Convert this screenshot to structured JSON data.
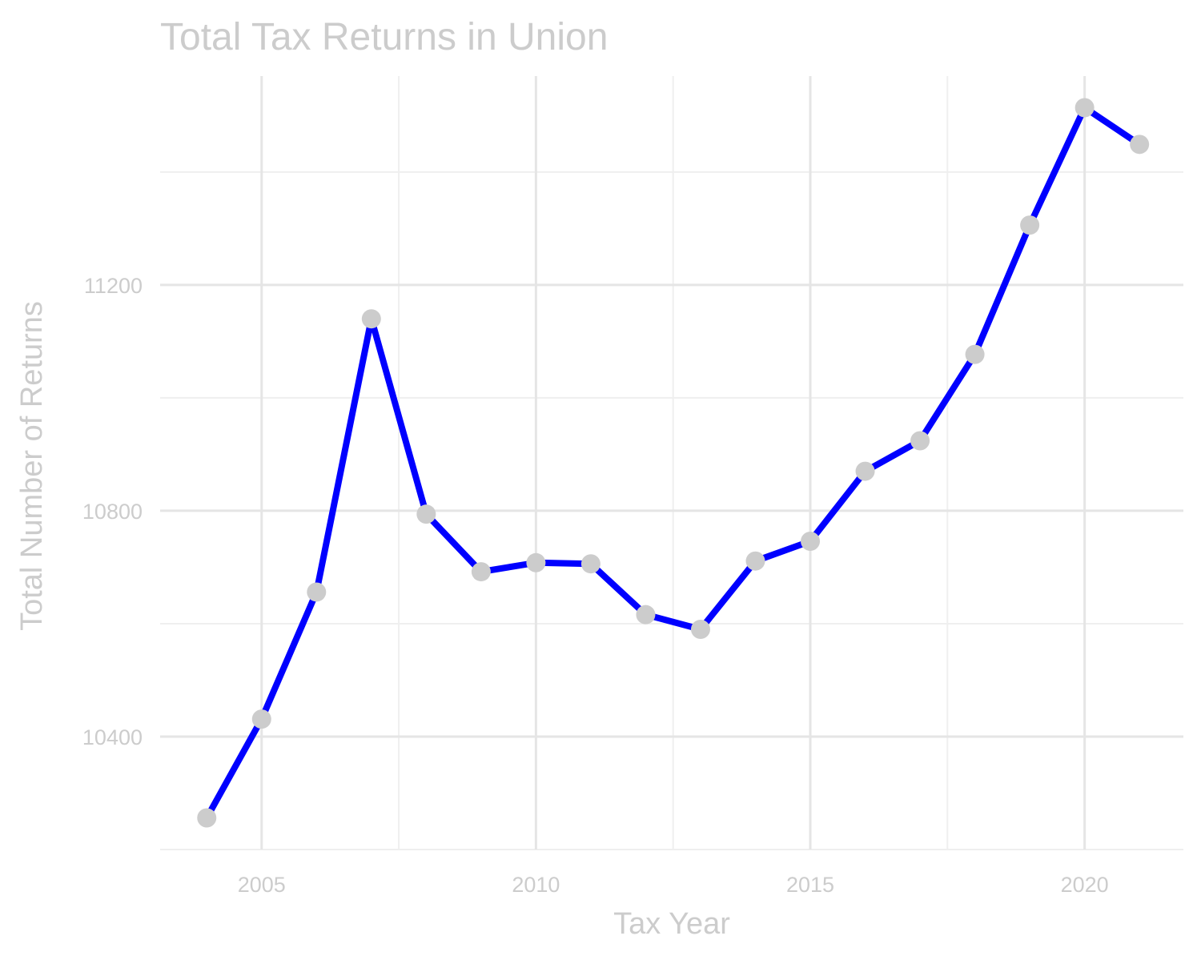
{
  "chart_data": {
    "type": "line",
    "title": "Total Tax Returns in Union",
    "xlabel": "Tax Year",
    "ylabel": "Total Number of Returns",
    "x": [
      2004,
      2005,
      2006,
      2007,
      2008,
      2009,
      2010,
      2011,
      2012,
      2013,
      2014,
      2015,
      2016,
      2017,
      2018,
      2019,
      2020,
      2021
    ],
    "series": [
      {
        "values": [
          10256,
          10431,
          10656,
          11140,
          10794,
          10692,
          10708,
          10706,
          10616,
          10590,
          10711,
          10746,
          10870,
          10924,
          11077,
          11306,
          11514,
          11449
        ]
      }
    ],
    "xlim": [
      2003.15,
      2021.8
    ],
    "ylim": [
      10200,
      11570
    ],
    "x_ticks": [
      2005,
      2010,
      2015,
      2020
    ],
    "x_tick_labels": [
      "2005",
      "2010",
      "2015",
      "2020"
    ],
    "y_ticks": [
      10400,
      10800,
      11200
    ],
    "y_tick_labels": [
      "10400",
      "10800",
      "11200"
    ],
    "grid": true,
    "legend": "none",
    "colors": {
      "line": "#0000ff",
      "points": "#cccccc",
      "grid": "#e5e5e5",
      "text": "#cccccc"
    }
  }
}
